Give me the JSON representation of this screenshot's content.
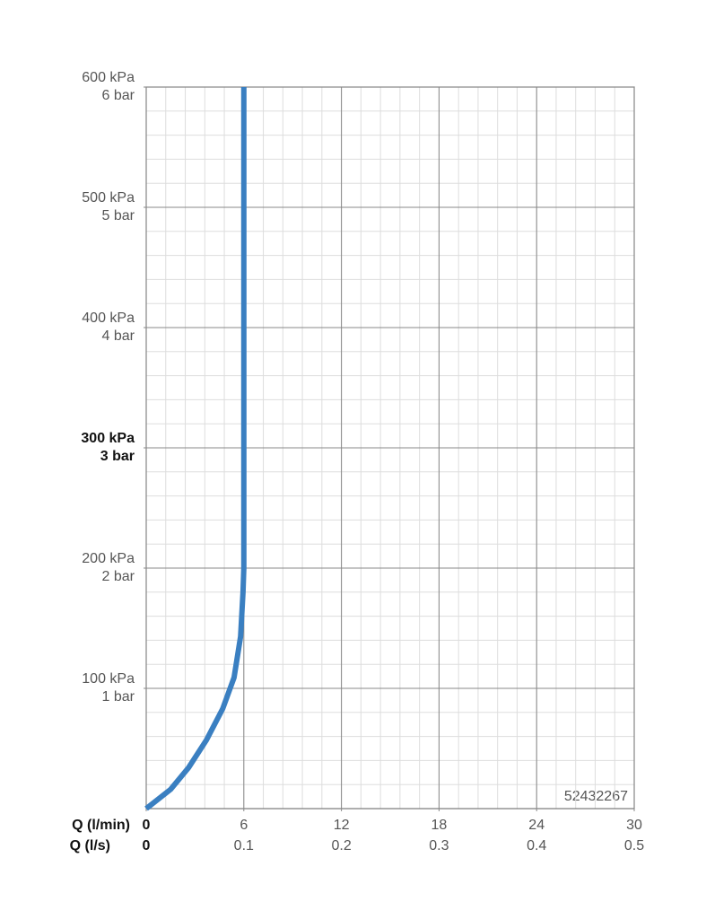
{
  "chart_data": {
    "type": "line",
    "x": [
      0,
      1.5,
      2.6,
      3.7,
      4.7,
      5.4,
      5.8,
      5.95,
      6,
      6
    ],
    "values": [
      0,
      16,
      34,
      57,
      83,
      109,
      143,
      180,
      200,
      600
    ],
    "color": "#3a7fc1",
    "xlim": [
      0,
      30
    ],
    "xticks": [
      0,
      6,
      12,
      18,
      24,
      30
    ],
    "x2lim": [
      0,
      0.5
    ],
    "x2ticks": [
      0,
      0.1,
      0.2,
      0.3,
      0.4,
      0.5
    ],
    "ylim": [
      0,
      600
    ],
    "yticks": [
      {
        "value": 100,
        "label": "100 kPa"
      },
      {
        "value": 200,
        "label": "200 kPa"
      },
      {
        "value": 300,
        "label": "300 kPa"
      },
      {
        "value": 400,
        "label": "400 kPa"
      },
      {
        "value": 500,
        "label": "500 kPa"
      },
      {
        "value": 600,
        "label": "600 kPa"
      }
    ],
    "y2lim": [
      0,
      6
    ],
    "y2ticks": [
      {
        "value": 1,
        "label": "1 bar"
      },
      {
        "value": 2,
        "label": "2 bar"
      },
      {
        "value": 3,
        "label": "3 bar"
      },
      {
        "value": 4,
        "label": "4 bar"
      },
      {
        "value": 5,
        "label": "5 bar"
      },
      {
        "value": 6,
        "label": "6 bar"
      }
    ],
    "emphasized_ytick": 300,
    "grid": true,
    "minor_xstep": 1.2,
    "minor_ystep": 20,
    "xlabel": "Q (l/min)",
    "x2label": "Q (l/s)",
    "annotation": "52432267"
  }
}
